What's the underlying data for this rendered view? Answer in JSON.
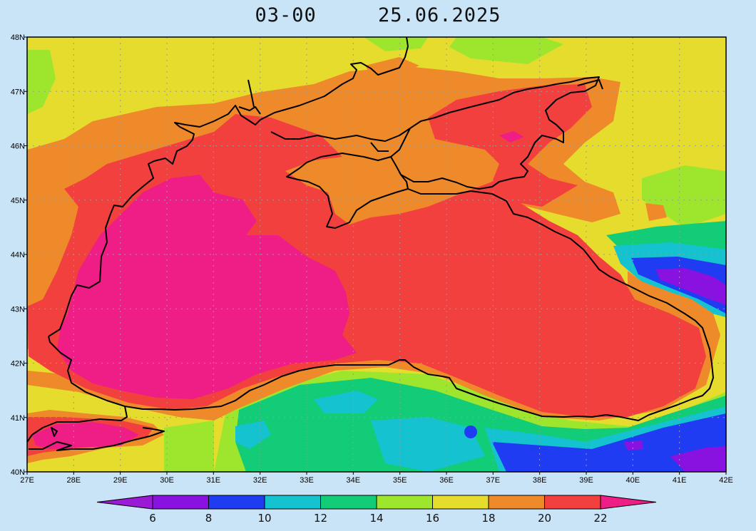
{
  "title": {
    "time": "03-00",
    "date": "25.06.2025"
  },
  "map": {
    "lat_labels": [
      "48N",
      "47N",
      "46N",
      "45N",
      "44N",
      "43N",
      "42N",
      "41N",
      "40N"
    ],
    "lon_labels": [
      "27E",
      "28E",
      "29E",
      "30E",
      "31E",
      "32E",
      "33E",
      "34E",
      "35E",
      "36E",
      "37E",
      "38E",
      "39E",
      "40E",
      "41E",
      "42E"
    ],
    "gridlines": true
  },
  "colorbar": {
    "labels": [
      "6",
      "8",
      "10",
      "12",
      "14",
      "16",
      "18",
      "20",
      "22"
    ],
    "colors": [
      "#9a1ad6",
      "#8a12e0",
      "#1f3cf2",
      "#15c2cf",
      "#12cc77",
      "#9ee62e",
      "#e6dc2e",
      "#ef8a2a",
      "#f2403f",
      "#ef1d86"
    ]
  },
  "palette": {
    "below_6": "#9a1ad6",
    "c6_8": "#8a12e0",
    "c8_10": "#1f3cf2",
    "c10_12": "#15c2cf",
    "c12_14": "#12cc77",
    "c14_16": "#9ee62e",
    "c16_18": "#e6dc2e",
    "c18_20": "#ef8a2a",
    "c20_22": "#f2403f",
    "above_22": "#ef1d86"
  }
}
